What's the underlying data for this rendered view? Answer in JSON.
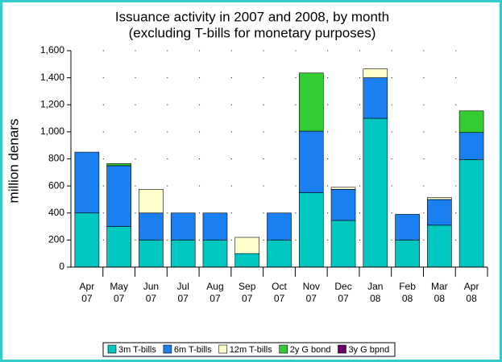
{
  "chart_data": {
    "type": "stacked_bar",
    "title": "Issuance activity in 2007 and 2008, by month",
    "subtitle": "(excluding T-bills for monetary purposes)",
    "y_label": "million denars",
    "categories": [
      "Apr 07",
      "May 07",
      "Jun 07",
      "Jul 07",
      "Aug 07",
      "Sep 07",
      "Oct 07",
      "Nov 07",
      "Dec 07",
      "Jan 08",
      "Feb 08",
      "Mar 08",
      "Apr 08"
    ],
    "series": [
      {
        "name": "3m T-bills",
        "color": "#00c8c0",
        "values": [
          400,
          300,
          200,
          200,
          200,
          100,
          200,
          550,
          345,
          1100,
          200,
          310,
          795
        ]
      },
      {
        "name": "6m T-bills",
        "color": "#1a7ff0",
        "values": [
          450,
          450,
          200,
          200,
          200,
          0,
          200,
          455,
          230,
          300,
          190,
          190,
          200
        ]
      },
      {
        "name": "12m T-bills",
        "color": "#ffffcc",
        "values": [
          0,
          0,
          175,
          0,
          0,
          120,
          0,
          0,
          15,
          65,
          0,
          15,
          0
        ]
      },
      {
        "name": "2y G bond",
        "color": "#33cc33",
        "values": [
          0,
          15,
          0,
          0,
          0,
          0,
          0,
          430,
          0,
          0,
          0,
          0,
          160
        ]
      },
      {
        "name": "3y G bpnd",
        "color": "#660066",
        "values": [
          0,
          0,
          0,
          0,
          0,
          0,
          0,
          0,
          0,
          0,
          0,
          0,
          0
        ]
      }
    ],
    "ylim": [
      0,
      1600
    ],
    "yticks": [
      0,
      200,
      400,
      600,
      800,
      {
        "value": 1000,
        "label": "1,000"
      },
      {
        "value": 1200,
        "label": "1,200"
      },
      {
        "value": 1400,
        "label": "1,400"
      },
      {
        "value": 1600,
        "label": "1,600"
      }
    ],
    "grid": true
  }
}
